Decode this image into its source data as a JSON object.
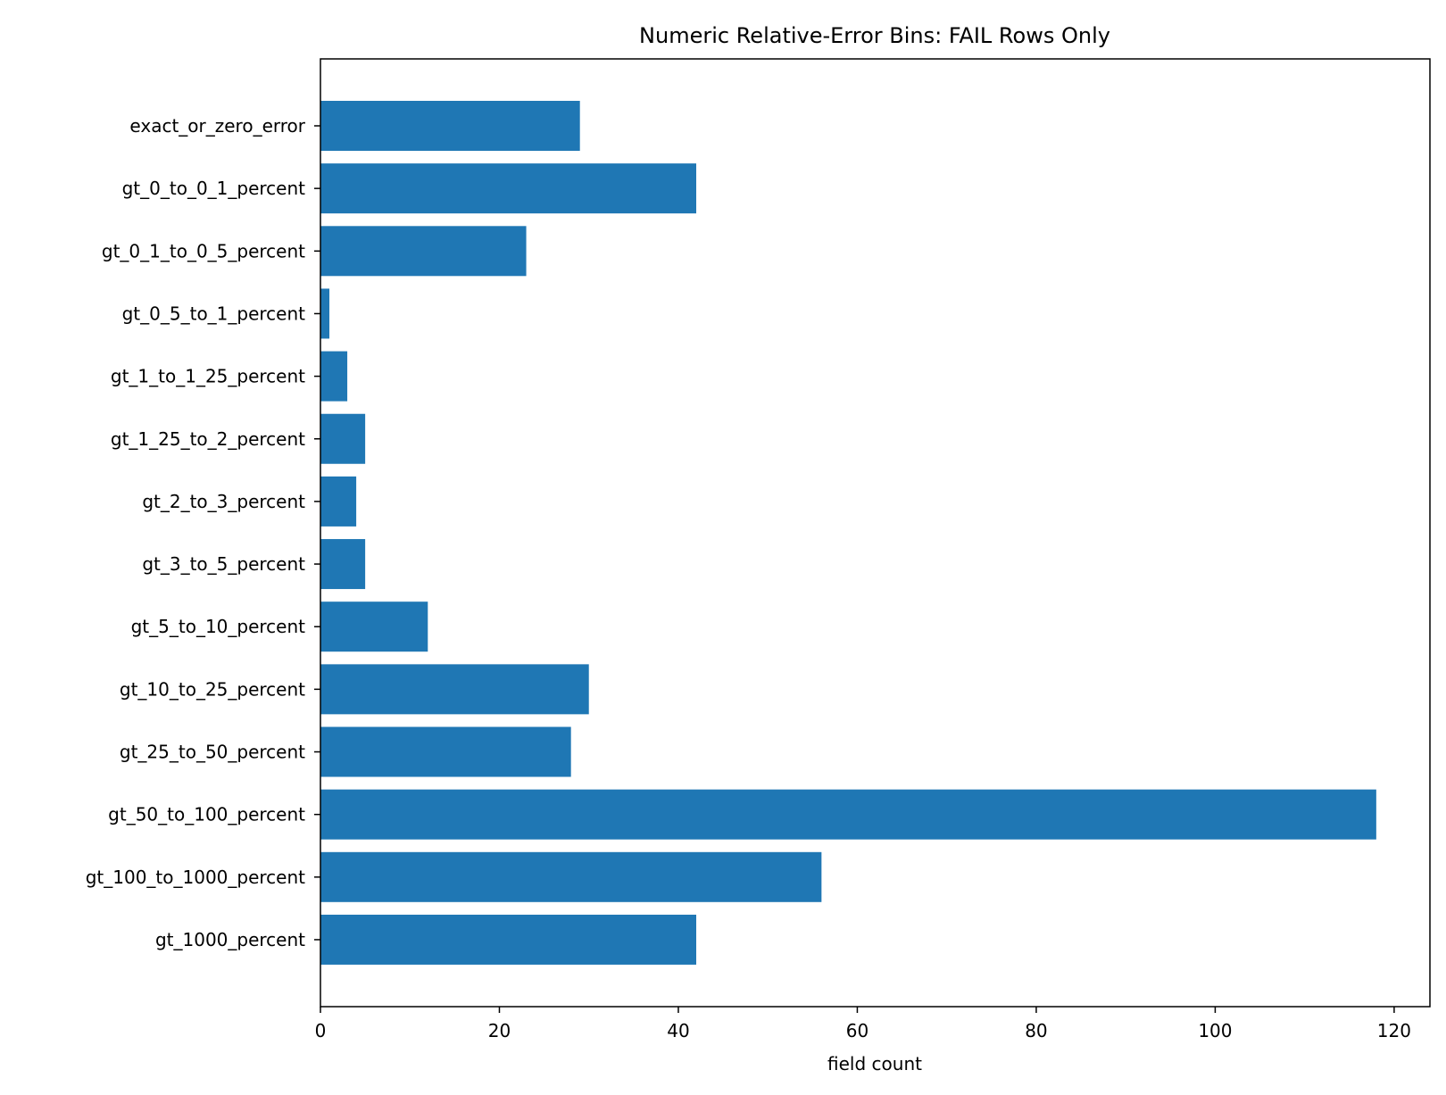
{
  "chart_data": {
    "type": "bar",
    "orientation": "horizontal",
    "title": "Numeric Relative-Error Bins: FAIL Rows Only",
    "xlabel": "field count",
    "ylabel": "",
    "categories": [
      "exact_or_zero_error",
      "gt_0_to_0_1_percent",
      "gt_0_1_to_0_5_percent",
      "gt_0_5_to_1_percent",
      "gt_1_to_1_25_percent",
      "gt_1_25_to_2_percent",
      "gt_2_to_3_percent",
      "gt_3_to_5_percent",
      "gt_5_to_10_percent",
      "gt_10_to_25_percent",
      "gt_25_to_50_percent",
      "gt_50_to_100_percent",
      "gt_100_to_1000_percent",
      "gt_1000_percent"
    ],
    "values": [
      29,
      42,
      23,
      1,
      3,
      5,
      4,
      5,
      12,
      30,
      28,
      118,
      56,
      42
    ],
    "xlim": [
      0,
      124
    ],
    "xticks": [
      0,
      20,
      40,
      60,
      80,
      100,
      120
    ],
    "xtick_labels": [
      "0",
      "20",
      "40",
      "60",
      "80",
      "100",
      "120"
    ],
    "bar_color": "#1f77b4",
    "grid": false,
    "legend": "none"
  }
}
